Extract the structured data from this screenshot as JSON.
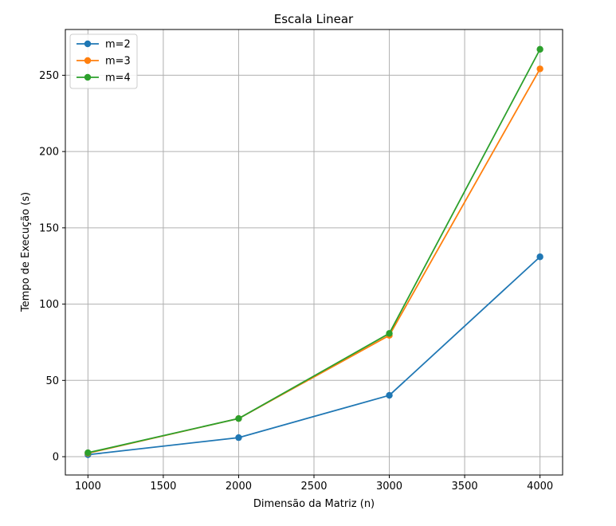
{
  "chart_data": {
    "type": "line",
    "title": "Escala Linear",
    "xlabel": "Dimensão da Matriz (n)",
    "ylabel": "Tempo de Execução (s)",
    "xlim": [
      850,
      4150
    ],
    "ylim": [
      -12,
      280
    ],
    "xticks": [
      1000,
      1500,
      2000,
      2500,
      3000,
      3500,
      4000
    ],
    "yticks": [
      0,
      50,
      100,
      150,
      200,
      250
    ],
    "grid": true,
    "legend_position": "top-left",
    "x": [
      1000,
      2000,
      3000,
      4000
    ],
    "series": [
      {
        "name": "m=2",
        "color": "#1f77b4",
        "values": [
          1.3,
          12.5,
          40.2,
          131.0
        ]
      },
      {
        "name": "m=3",
        "color": "#ff7f0e",
        "values": [
          2.3,
          25.0,
          79.5,
          254.2
        ]
      },
      {
        "name": "m=4",
        "color": "#2ca02c",
        "values": [
          2.6,
          25.0,
          80.8,
          267.0
        ]
      }
    ]
  }
}
